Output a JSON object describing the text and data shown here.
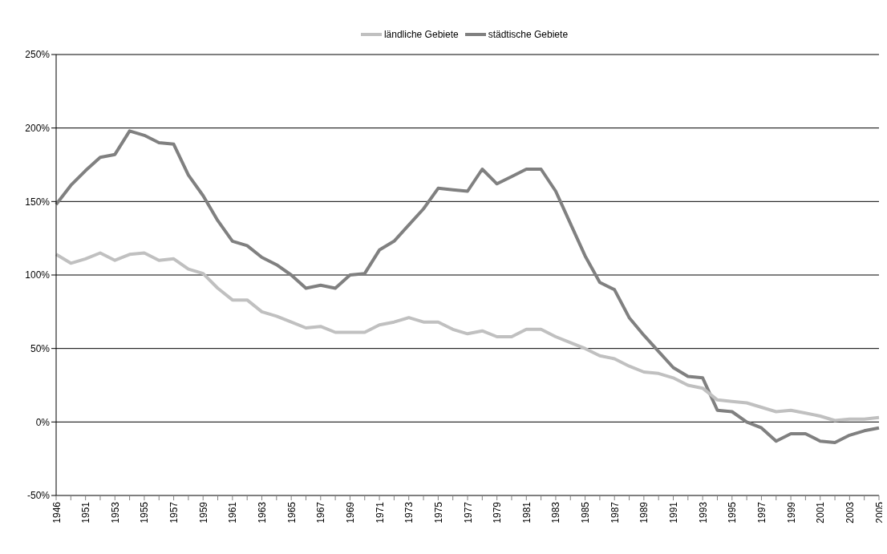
{
  "chart_data": {
    "type": "line",
    "categories": [
      "1946",
      null,
      "1951",
      null,
      "1953",
      null,
      "1955",
      null,
      "1957",
      null,
      "1959",
      null,
      "1961",
      null,
      "1963",
      null,
      "1965",
      null,
      "1967",
      null,
      "1969",
      null,
      "1971",
      null,
      "1973",
      null,
      "1975",
      null,
      "1977",
      null,
      "1979",
      null,
      "1981",
      null,
      "1983",
      null,
      "1985",
      null,
      "1987",
      null,
      "1989",
      null,
      "1991",
      null,
      "1993",
      null,
      "1995",
      null,
      "1997",
      null,
      "1999",
      null,
      "2001",
      null,
      "2003",
      null,
      "2005"
    ],
    "series": [
      {
        "name": "städtische Gebiete",
        "color": "#808080",
        "values": [
          148,
          161,
          171,
          180,
          182,
          198,
          195,
          190,
          189,
          168,
          154,
          137,
          123,
          120,
          112,
          107,
          100,
          91,
          93,
          91,
          100,
          101,
          117,
          123,
          134,
          145,
          159,
          158,
          157,
          172,
          162,
          167,
          172,
          172,
          157,
          135,
          113,
          95,
          90,
          71,
          59,
          48,
          37,
          31,
          30,
          8,
          7,
          0,
          -4,
          -13,
          -8,
          -8,
          -13,
          -14,
          -9,
          -6,
          -4
        ]
      },
      {
        "name": "ländliche Gebiete",
        "color": "#c0c0c0",
        "values": [
          114,
          108,
          111,
          115,
          110,
          114,
          115,
          110,
          111,
          104,
          101,
          91,
          83,
          83,
          75,
          72,
          68,
          64,
          65,
          61,
          61,
          61,
          66,
          68,
          71,
          68,
          68,
          63,
          60,
          62,
          58,
          58,
          63,
          63,
          58,
          54,
          50,
          45,
          43,
          38,
          34,
          33,
          30,
          25,
          23,
          15,
          14,
          13,
          10,
          7,
          8,
          6,
          4,
          1,
          2,
          2,
          3
        ]
      }
    ],
    "ylim": [
      -50,
      250
    ],
    "yticks": [
      {
        "value": -50,
        "label": "-50%"
      },
      {
        "value": 0,
        "label": "0%"
      },
      {
        "value": 50,
        "label": "50%"
      },
      {
        "value": 100,
        "label": "100%"
      },
      {
        "value": 150,
        "label": "150%"
      },
      {
        "value": 200,
        "label": "200%"
      },
      {
        "value": 250,
        "label": "250%"
      }
    ],
    "grid": "y",
    "legend": "top",
    "marker": "none",
    "line_style": "solid"
  }
}
